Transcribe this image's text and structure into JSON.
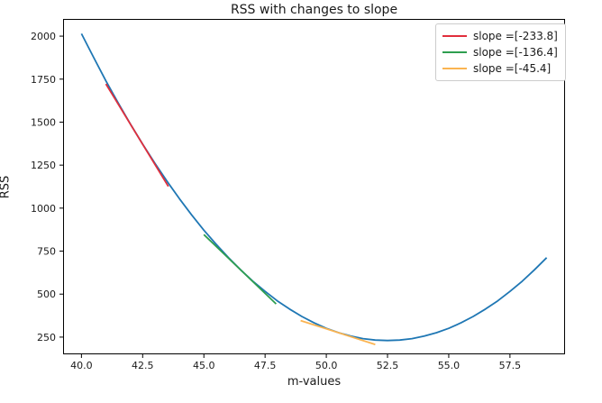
{
  "chart_data": {
    "type": "line",
    "title": "RSS with changes to slope",
    "xlabel": "m-values",
    "ylabel": "RSS",
    "xlim": [
      39.25,
      59.75
    ],
    "ylim": [
      150,
      2100
    ],
    "xtick_values": [
      40.0,
      42.5,
      45.0,
      47.5,
      50.0,
      52.5,
      55.0,
      57.5
    ],
    "xtick_labels": [
      "40.0",
      "42.5",
      "45.0",
      "47.5",
      "50.0",
      "52.5",
      "55.0",
      "57.5"
    ],
    "ytick_values": [
      250,
      500,
      750,
      1000,
      1250,
      1500,
      1750,
      2000
    ],
    "ytick_labels": [
      "250",
      "500",
      "750",
      "1000",
      "1250",
      "1500",
      "1750",
      "2000"
    ],
    "grid": false,
    "legend_position": "upper right",
    "axis_color": "#000000",
    "text_color": "#1a1a1a",
    "series": [
      {
        "name": "rss-curve",
        "color": "#1f77b4",
        "label": null,
        "points": [
          [
            40,
            2014
          ],
          [
            40.5,
            1875
          ],
          [
            41,
            1740
          ],
          [
            41.5,
            1612
          ],
          [
            42,
            1489
          ],
          [
            42.5,
            1372
          ],
          [
            43,
            1261
          ],
          [
            43.5,
            1155
          ],
          [
            44,
            1055
          ],
          [
            44.5,
            961
          ],
          [
            45,
            872
          ],
          [
            45.5,
            790
          ],
          [
            46,
            713
          ],
          [
            46.5,
            641
          ],
          [
            47,
            575
          ],
          [
            47.5,
            516
          ],
          [
            48,
            461
          ],
          [
            48.5,
            413
          ],
          [
            49,
            370
          ],
          [
            49.5,
            333
          ],
          [
            50,
            301
          ],
          [
            50.5,
            276
          ],
          [
            51,
            256
          ],
          [
            51.5,
            241
          ],
          [
            52,
            233
          ],
          [
            52.5,
            230
          ],
          [
            53,
            233
          ],
          [
            53.5,
            241
          ],
          [
            54,
            256
          ],
          [
            54.5,
            276
          ],
          [
            55,
            301
          ],
          [
            55.5,
            333
          ],
          [
            56,
            370
          ],
          [
            56.5,
            413
          ],
          [
            57,
            461
          ],
          [
            57.5,
            516
          ],
          [
            58,
            575
          ],
          [
            58.5,
            641
          ],
          [
            59,
            712
          ]
        ]
      },
      {
        "name": "tangent-slope-233",
        "color": "#e12e3c",
        "label": "slope =[-233.8]",
        "slope": -233.8,
        "points": [
          [
            41.0,
            1722
          ],
          [
            43.55,
            1126
          ]
        ]
      },
      {
        "name": "tangent-slope-136",
        "color": "#2e9e4f",
        "label": "slope =[-136.4]",
        "slope": -136.4,
        "points": [
          [
            45.0,
            846
          ],
          [
            47.95,
            443
          ]
        ]
      },
      {
        "name": "tangent-slope-45",
        "color": "#fbb451",
        "label": "slope =[-45.4]",
        "slope": -45.4,
        "points": [
          [
            48.95,
            346
          ],
          [
            52.0,
            207
          ]
        ]
      }
    ]
  }
}
